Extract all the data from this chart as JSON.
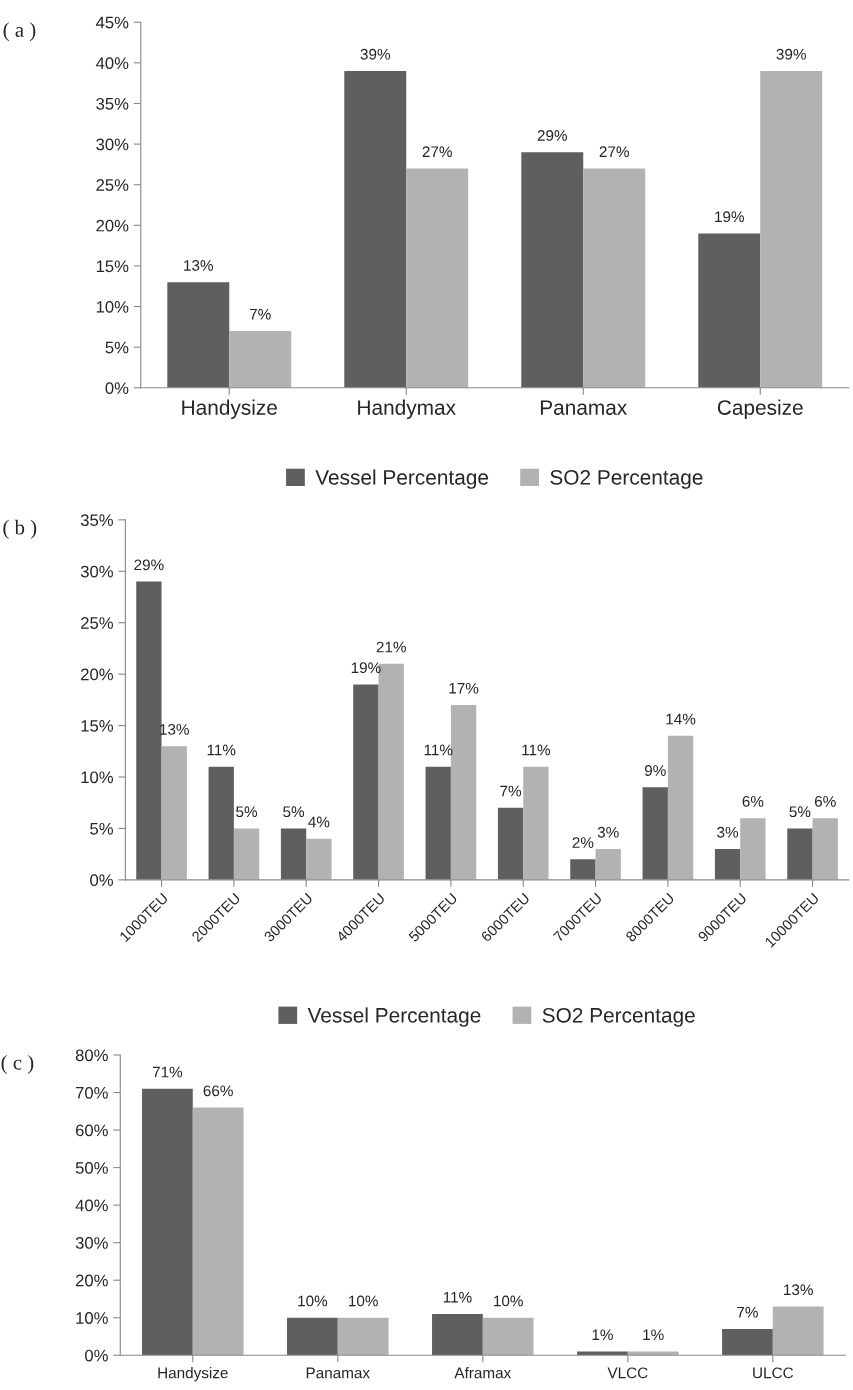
{
  "chart_data": [
    {
      "type": "bar",
      "title": "( a )",
      "categories": [
        "Handysize",
        "Handymax",
        "Panamax",
        "Capesize"
      ],
      "series": [
        {
          "name": "Vessel Percentage",
          "color": "#5f5f5f",
          "values": [
            13,
            39,
            29,
            19
          ],
          "value_labels": [
            "13%",
            "39%",
            "29%",
            "19%"
          ]
        },
        {
          "name": "SO2 Percentage",
          "color": "#b2b2b2",
          "values": [
            7,
            27,
            27,
            39
          ],
          "value_labels": [
            "7%",
            "27%",
            "27%",
            "39%"
          ]
        }
      ],
      "ylim": [
        0,
        45
      ],
      "yticks": [
        {
          "value": 0,
          "label": "0%"
        },
        {
          "value": 5,
          "label": "5%"
        },
        {
          "value": 10,
          "label": "10%"
        },
        {
          "value": 15,
          "label": "15%"
        },
        {
          "value": 20,
          "label": "20%"
        },
        {
          "value": 25,
          "label": "25%"
        },
        {
          "value": 30,
          "label": "30%"
        },
        {
          "value": 35,
          "label": "35%"
        },
        {
          "value": 40,
          "label": "40%"
        },
        {
          "value": 45,
          "label": "45%"
        }
      ],
      "grid": false,
      "legend": "bottom"
    },
    {
      "type": "bar",
      "title": "( b )",
      "categories": [
        "1000TEU",
        "2000TEU",
        "3000TEU",
        "4000TEU",
        "5000TEU",
        "6000TEU",
        "7000TEU",
        "8000TEU",
        "9000TEU",
        "10000TEU"
      ],
      "series": [
        {
          "name": "Vessel Percentage",
          "color": "#5f5f5f",
          "values": [
            29,
            11,
            5,
            19,
            11,
            7,
            2,
            9,
            3,
            5
          ],
          "value_labels": [
            "29%",
            "11%",
            "5%",
            "19%",
            "11%",
            "7%",
            "2%",
            "9%",
            "3%",
            "5%"
          ]
        },
        {
          "name": "SO2 Percentage",
          "color": "#b2b2b2",
          "values": [
            13,
            5,
            4,
            21,
            17,
            11,
            3,
            14,
            6,
            6
          ],
          "value_labels": [
            "13%",
            "5%",
            "4%",
            "21%",
            "17%",
            "11%",
            "3%",
            "14%",
            "6%",
            "6%"
          ]
        }
      ],
      "ylim": [
        0,
        35
      ],
      "yticks": [
        {
          "value": 0,
          "label": "0%"
        },
        {
          "value": 5,
          "label": "5%"
        },
        {
          "value": 10,
          "label": "10%"
        },
        {
          "value": 15,
          "label": "15%"
        },
        {
          "value": 20,
          "label": "20%"
        },
        {
          "value": 25,
          "label": "25%"
        },
        {
          "value": 30,
          "label": "30%"
        },
        {
          "value": 35,
          "label": "35%"
        }
      ],
      "grid": false,
      "legend": "bottom"
    },
    {
      "type": "bar",
      "title": "( c )",
      "categories": [
        "Handysize",
        "Panamax",
        "Aframax",
        "VLCC",
        "ULCC"
      ],
      "series": [
        {
          "color": "#5f5f5f",
          "values": [
            71,
            10,
            11,
            1,
            7
          ],
          "value_labels": [
            "71%",
            "10%",
            "11%",
            "1%",
            "7%"
          ]
        },
        {
          "color": "#b2b2b2",
          "values": [
            66,
            10,
            10,
            1,
            13
          ],
          "value_labels": [
            "66%",
            "10%",
            "10%",
            "1%",
            "13%"
          ]
        }
      ],
      "ylim": [
        0,
        80
      ],
      "yticks": [
        {
          "value": 0,
          "label": "0%"
        },
        {
          "value": 10,
          "label": "10%"
        },
        {
          "value": 20,
          "label": "20%"
        },
        {
          "value": 30,
          "label": "30%"
        },
        {
          "value": 40,
          "label": "40%"
        },
        {
          "value": 50,
          "label": "50%"
        },
        {
          "value": 60,
          "label": "60%"
        },
        {
          "value": 70,
          "label": "70%"
        },
        {
          "value": 80,
          "label": "80%"
        }
      ],
      "grid": false
    }
  ]
}
